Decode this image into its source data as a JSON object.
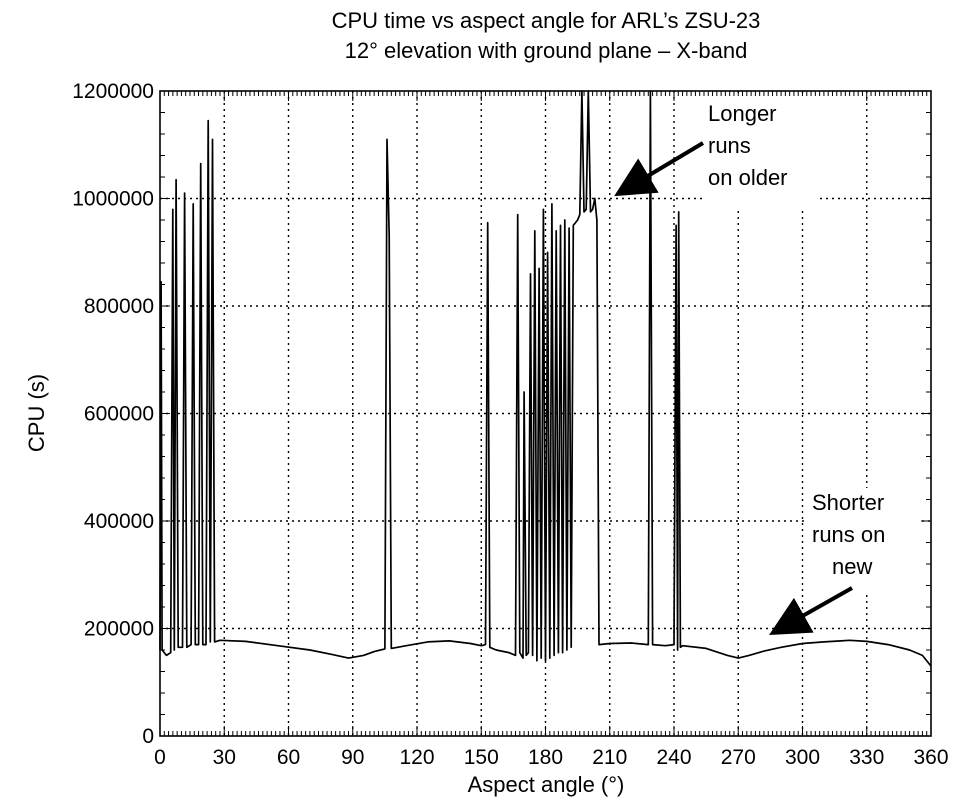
{
  "chart_data": {
    "type": "line",
    "title": "CPU time vs aspect angle for ARL’s ZSU-23",
    "subtitle": "12° elevation with ground plane – X-band",
    "xlabel": "Aspect angle (°)",
    "ylabel": "CPU (s)",
    "xlim": [
      0,
      360
    ],
    "ylim": [
      0,
      1200000
    ],
    "x_ticks": [
      0,
      30,
      60,
      90,
      120,
      150,
      180,
      210,
      240,
      270,
      300,
      330,
      360
    ],
    "y_ticks": [
      0,
      200000,
      400000,
      600000,
      800000,
      1000000,
      1200000
    ],
    "x_tick_labels": [
      "0",
      "30",
      "60",
      "90",
      "120",
      "150",
      "180",
      "210",
      "240",
      "270",
      "300",
      "330",
      "360"
    ],
    "y_tick_labels": [
      "0",
      "200000",
      "400000",
      "600000",
      "800000",
      "1000000",
      "1200000"
    ],
    "grid": true,
    "legend": "none",
    "line_color": "#000000",
    "annotations": [
      {
        "lines": [
          "Longer",
          "runs",
          "on older"
        ],
        "arrow_to": [
          212,
          1010000
        ]
      },
      {
        "lines": [
          "Shorter",
          "runs on",
          "new"
        ],
        "arrow_to": [
          283,
          180000
        ]
      }
    ],
    "series": [
      {
        "values": [
          [
            0,
            160000
          ],
          [
            0.5,
            845000
          ],
          [
            1,
            160000
          ],
          [
            3,
            150000
          ],
          [
            5,
            155000
          ],
          [
            6,
            980000
          ],
          [
            6.7,
            160000
          ],
          [
            7.5,
            1035000
          ],
          [
            8.5,
            165000
          ],
          [
            10.5,
            165000
          ],
          [
            11.5,
            1010000
          ],
          [
            12.5,
            165000
          ],
          [
            14.5,
            170000
          ],
          [
            15.5,
            990000
          ],
          [
            16.5,
            170000
          ],
          [
            18,
            170000
          ],
          [
            19,
            1065000
          ],
          [
            20,
            170000
          ],
          [
            21.5,
            170000
          ],
          [
            22.5,
            1145000
          ],
          [
            23.5,
            175000
          ],
          [
            24.5,
            1110000
          ],
          [
            25.5,
            175000
          ],
          [
            28,
            178000
          ],
          [
            40,
            176000
          ],
          [
            55,
            168000
          ],
          [
            70,
            160000
          ],
          [
            80,
            152000
          ],
          [
            88,
            145000
          ],
          [
            95,
            150000
          ],
          [
            100,
            157000
          ],
          [
            105,
            162000
          ],
          [
            106,
            1110000
          ],
          [
            107,
            930000
          ],
          [
            108,
            163000
          ],
          [
            115,
            168000
          ],
          [
            125,
            175000
          ],
          [
            135,
            177000
          ],
          [
            145,
            172000
          ],
          [
            150,
            168000
          ],
          [
            152,
            170000
          ],
          [
            153,
            955000
          ],
          [
            154,
            165000
          ],
          [
            157,
            160000
          ],
          [
            163,
            155000
          ],
          [
            166,
            150000
          ],
          [
            167,
            970000
          ],
          [
            168,
            155000
          ],
          [
            169.5,
            145000
          ],
          [
            170,
            640000
          ],
          [
            171,
            150000
          ],
          [
            172,
            155000
          ],
          [
            173,
            860000
          ],
          [
            174,
            150000
          ],
          [
            175,
            940000
          ],
          [
            176,
            140000
          ],
          [
            177,
            870000
          ],
          [
            178,
            145000
          ],
          [
            179,
            980000
          ],
          [
            180,
            140000
          ],
          [
            181,
            900000
          ],
          [
            182,
            145000
          ],
          [
            183,
            990000
          ],
          [
            184,
            150000
          ],
          [
            185,
            940000
          ],
          [
            186,
            155000
          ],
          [
            187,
            950000
          ],
          [
            188,
            155000
          ],
          [
            189,
            960000
          ],
          [
            190,
            160000
          ],
          [
            191,
            945000
          ],
          [
            192,
            165000
          ],
          [
            193,
            950000
          ],
          [
            194,
            955000
          ],
          [
            195,
            960000
          ],
          [
            196,
            970000
          ],
          [
            197,
            1200000
          ],
          [
            198,
            975000
          ],
          [
            199,
            980000
          ],
          [
            200,
            1200000
          ],
          [
            201,
            975000
          ],
          [
            202,
            980000
          ],
          [
            203,
            1000000
          ],
          [
            204,
            960000
          ],
          [
            205,
            170000
          ],
          [
            210,
            172000
          ],
          [
            220,
            173000
          ],
          [
            228,
            170000
          ],
          [
            229,
            1200000
          ],
          [
            230,
            170000
          ],
          [
            236,
            168000
          ],
          [
            240,
            170000
          ],
          [
            241,
            950000
          ],
          [
            241.7,
            160000
          ],
          [
            242.2,
            975000
          ],
          [
            243,
            165000
          ],
          [
            244,
            168000
          ],
          [
            255,
            163000
          ],
          [
            265,
            150000
          ],
          [
            270,
            145000
          ],
          [
            275,
            150000
          ],
          [
            282,
            158000
          ],
          [
            290,
            165000
          ],
          [
            300,
            172000
          ],
          [
            310,
            175000
          ],
          [
            318,
            177000
          ],
          [
            322,
            178000
          ],
          [
            330,
            176000
          ],
          [
            340,
            170000
          ],
          [
            350,
            160000
          ],
          [
            356,
            150000
          ],
          [
            360,
            130000
          ]
        ]
      }
    ]
  }
}
